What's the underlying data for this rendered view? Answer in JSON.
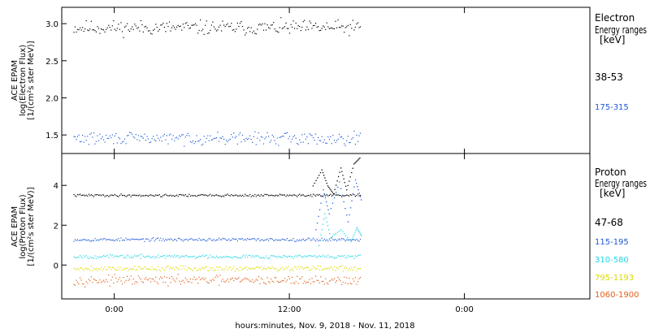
{
  "chart_data": [
    {
      "type": "scatter",
      "panel": "electron",
      "ylabel_lines": [
        "ACE EPAM",
        "log(Electron Flux)",
        "[1/(cm²s ster MeV)]"
      ],
      "ylim": [
        1.25,
        3.22
      ],
      "yticks": [
        1.5,
        2.0,
        2.5,
        3.0
      ],
      "ytick_labels": [
        "1.5",
        "2.0",
        "2.5",
        "3.0"
      ],
      "legend_title": [
        "Electron",
        "Energy ranges",
        "[keV]"
      ],
      "series": [
        {
          "name": "38-53",
          "color": "#000000",
          "level": 2.95,
          "spread": 0.06,
          "start": -2.8,
          "end": 16.9,
          "seed": 11
        },
        {
          "name": "175-315",
          "color": "#1f5ad6",
          "level": 1.46,
          "spread": 0.05,
          "start": -2.8,
          "end": 16.9,
          "seed": 29
        }
      ]
    },
    {
      "type": "scatter",
      "panel": "proton",
      "ylabel_lines": [
        "ACE EPAM",
        "log(Proton Flux)",
        "[1/(cm²s ster MeV)]"
      ],
      "ylim": [
        -1.7,
        5.6
      ],
      "yticks": [
        0,
        2,
        4
      ],
      "ytick_labels": [
        "0",
        "2",
        "4"
      ],
      "legend_title": [
        "Proton",
        "Energy ranges",
        "[keV]"
      ],
      "series": [
        {
          "name": "47-68",
          "color": "#000000",
          "level": 3.52,
          "spread": 0.04,
          "start": -2.8,
          "end": 16.9,
          "seed": 41,
          "burst": [
            [
              13.6,
              4.0
            ],
            [
              14.2,
              4.8
            ],
            [
              14.6,
              4.0
            ],
            [
              15.0,
              3.6
            ],
            [
              15.5,
              4.9
            ],
            [
              15.9,
              3.8
            ],
            [
              16.4,
              5.1
            ],
            [
              16.8,
              5.4
            ]
          ]
        },
        {
          "name": "115-195",
          "color": "#1f5ad6",
          "level": 1.3,
          "spread": 0.05,
          "start": -2.8,
          "end": 16.9,
          "seed": 53,
          "burst": [
            [
              13.8,
              1.8
            ],
            [
              14.3,
              3.8
            ],
            [
              14.7,
              2.6
            ],
            [
              15.4,
              4.2
            ],
            [
              16.0,
              2.2
            ],
            [
              16.5,
              4.3
            ],
            [
              16.9,
              3.3
            ]
          ]
        },
        {
          "name": "310-580",
          "color": "#22d6e6",
          "level": 0.45,
          "spread": 0.06,
          "start": -2.8,
          "end": 16.9,
          "seed": 67,
          "burst": [
            [
              14.0,
              1.0
            ],
            [
              14.4,
              2.6
            ],
            [
              14.8,
              1.4
            ],
            [
              15.5,
              1.8
            ],
            [
              16.2,
              1.2
            ],
            [
              16.6,
              1.9
            ],
            [
              16.9,
              1.5
            ]
          ]
        },
        {
          "name": "795-1193",
          "color": "#dada00",
          "level": -0.15,
          "spread": 0.08,
          "start": -2.8,
          "end": 16.9,
          "seed": 79
        },
        {
          "name": "1060-1900",
          "color": "#e0611a",
          "level": -0.75,
          "spread": 0.14,
          "start": -2.8,
          "end": 16.9,
          "seed": 97
        }
      ]
    }
  ],
  "x_axis": {
    "xlim": [
      -3.6,
      32.6
    ],
    "ticks": [
      0,
      12,
      24
    ],
    "tick_labels": [
      "0:00",
      "12:00",
      "0:00"
    ],
    "xlabel": "hours:minutes, Nov.  9, 2018 - Nov. 11, 2018"
  }
}
